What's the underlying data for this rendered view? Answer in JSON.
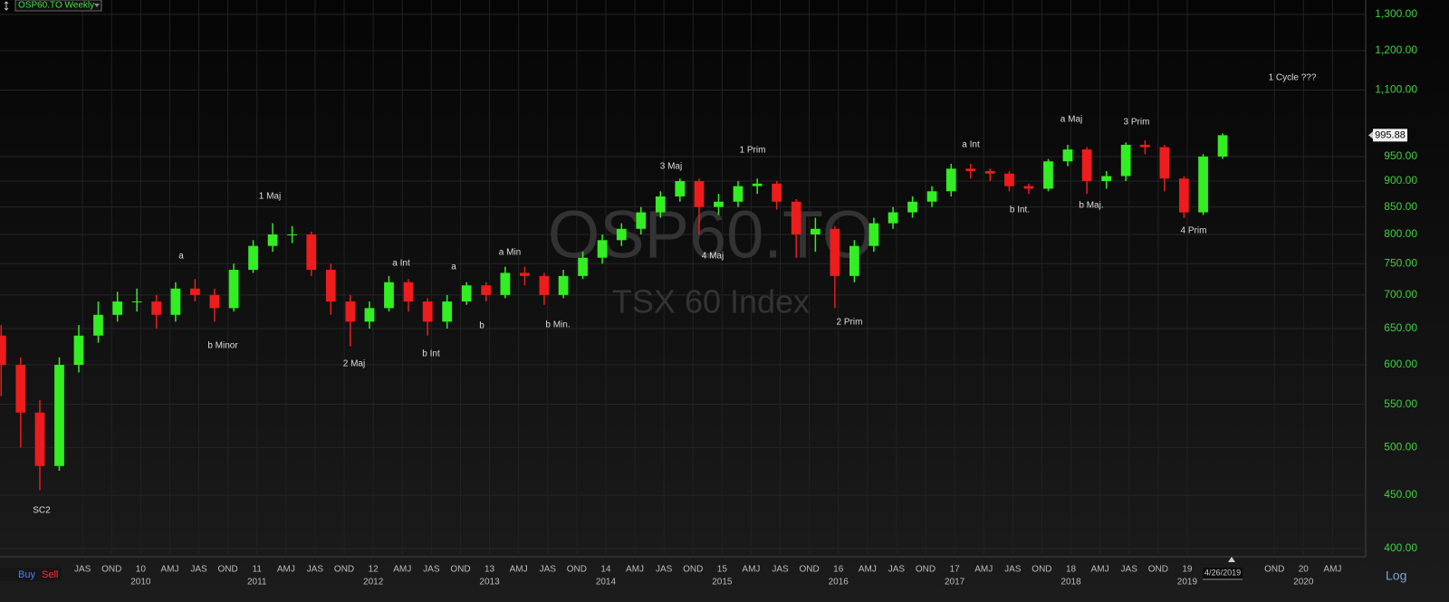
{
  "chart_data": {
    "type": "candlestick",
    "title": "OSP60.TO Weekly",
    "watermark": "OSP60.TO",
    "subtitle": "TSX 60 Index",
    "scale_label": "Log",
    "date_label": "4/26/2019",
    "buttons": [
      "Buy",
      "Sell"
    ],
    "log_scale": true,
    "grid": true,
    "up_color": "#33ee22",
    "down_color": "#ee1c1c",
    "xlim": [
      -0.84,
      46.14
    ],
    "ylim": [
      392.9,
      1342
    ],
    "yticks": [
      {
        "value": 400,
        "label": "400.00"
      },
      {
        "value": 450,
        "label": "450.00"
      },
      {
        "value": 500,
        "label": "500.00"
      },
      {
        "value": 550,
        "label": "550.00"
      },
      {
        "value": 600,
        "label": "600.00"
      },
      {
        "value": 650,
        "label": "650.00"
      },
      {
        "value": 700,
        "label": "700.00"
      },
      {
        "value": 750,
        "label": "750.00"
      },
      {
        "value": 800,
        "label": "800.00"
      },
      {
        "value": 850,
        "label": "850.00"
      },
      {
        "value": 900,
        "label": "900.00"
      },
      {
        "value": 950,
        "label": "950.00"
      },
      {
        "value": 1100,
        "label": "1,100.00"
      },
      {
        "value": 1200,
        "label": "1,200.00"
      },
      {
        "value": 1300,
        "label": "1,300.00"
      }
    ],
    "xticks": [
      {
        "value": 2,
        "label": "JAS"
      },
      {
        "value": 3,
        "label": "OND"
      },
      {
        "value": 4,
        "label": "10"
      },
      {
        "value": 5,
        "label": "AMJ"
      },
      {
        "value": 6,
        "label": "JAS"
      },
      {
        "value": 7,
        "label": "OND"
      },
      {
        "value": 8,
        "label": "11"
      },
      {
        "value": 9,
        "label": "AMJ"
      },
      {
        "value": 10,
        "label": "JAS"
      },
      {
        "value": 11,
        "label": "OND"
      },
      {
        "value": 12,
        "label": "12"
      },
      {
        "value": 13,
        "label": "AMJ"
      },
      {
        "value": 14,
        "label": "JAS"
      },
      {
        "value": 15,
        "label": "OND"
      },
      {
        "value": 16,
        "label": "13"
      },
      {
        "value": 17,
        "label": "AMJ"
      },
      {
        "value": 18,
        "label": "JAS"
      },
      {
        "value": 19,
        "label": "OND"
      },
      {
        "value": 20,
        "label": "14"
      },
      {
        "value": 21,
        "label": "AMJ"
      },
      {
        "value": 22,
        "label": "JAS"
      },
      {
        "value": 23,
        "label": "OND"
      },
      {
        "value": 24,
        "label": "15"
      },
      {
        "value": 25,
        "label": "AMJ"
      },
      {
        "value": 26,
        "label": "JAS"
      },
      {
        "value": 27,
        "label": "OND"
      },
      {
        "value": 28,
        "label": "16"
      },
      {
        "value": 29,
        "label": "AMJ"
      },
      {
        "value": 30,
        "label": "JAS"
      },
      {
        "value": 31,
        "label": "OND"
      },
      {
        "value": 32,
        "label": "17"
      },
      {
        "value": 33,
        "label": "AMJ"
      },
      {
        "value": 34,
        "label": "JAS"
      },
      {
        "value": 35,
        "label": "OND"
      },
      {
        "value": 36,
        "label": "18"
      },
      {
        "value": 37,
        "label": "AMJ"
      },
      {
        "value": 38,
        "label": "JAS"
      },
      {
        "value": 39,
        "label": "OND"
      },
      {
        "value": 40,
        "label": "19"
      },
      {
        "value": 43,
        "label": "OND"
      },
      {
        "value": 44,
        "label": "20"
      },
      {
        "value": 45,
        "label": "AMJ"
      }
    ],
    "xticks_years": [
      {
        "value": 4,
        "label": "2010"
      },
      {
        "value": 8,
        "label": "2011"
      },
      {
        "value": 12,
        "label": "2012"
      },
      {
        "value": 16,
        "label": "2013"
      },
      {
        "value": 20,
        "label": "2014"
      },
      {
        "value": 24,
        "label": "2015"
      },
      {
        "value": 28,
        "label": "2016"
      },
      {
        "value": 32,
        "label": "2017"
      },
      {
        "value": 36,
        "label": "2018"
      },
      {
        "value": 40,
        "label": "2019"
      },
      {
        "value": 44,
        "label": "2020"
      }
    ],
    "annotations": [
      "SC2",
      "a",
      "b Minor",
      "1 Maj",
      "2 Maj",
      "a Int",
      "b Int",
      "a",
      "a Min",
      "b",
      "b Min.",
      "3 Maj",
      "4 Maj",
      "1 Prim",
      "2 Prim",
      "a Int",
      "b Int.",
      "a Maj",
      "b Maj.",
      "3 Prim",
      "4 Prim",
      "1 Cycle ???"
    ],
    "x": [
      -0.8,
      -0.13,
      0.53,
      1.2,
      1.87,
      2.54,
      3.2,
      3.87,
      4.54,
      5.2,
      5.87,
      6.54,
      7.2,
      7.87,
      8.54,
      9.21,
      9.87,
      10.54,
      11.21,
      11.87,
      12.54,
      13.21,
      13.87,
      14.54,
      15.21,
      15.88,
      16.54,
      17.21,
      17.88,
      18.54,
      19.21,
      19.88,
      20.54,
      21.21,
      21.88,
      22.55,
      23.21,
      23.88,
      24.55,
      25.21,
      25.88,
      26.55,
      27.21,
      27.88,
      28.55,
      29.22,
      29.88,
      30.55,
      31.22,
      31.88,
      32.55,
      33.22,
      33.88,
      34.55,
      35.22,
      35.89,
      36.55,
      37.22,
      37.89,
      38.55,
      39.22,
      39.89,
      40.55,
      41.22
    ],
    "open": [
      640,
      600,
      540,
      480,
      600,
      640,
      670,
      690,
      690,
      670,
      710,
      700,
      680,
      740,
      780,
      800,
      800,
      740,
      690,
      660,
      680,
      720,
      690,
      660,
      690,
      715,
      700,
      735,
      730,
      700,
      730,
      760,
      790,
      810,
      840,
      870,
      900,
      850,
      860,
      890,
      895,
      860,
      800,
      810,
      730,
      780,
      820,
      840,
      860,
      880,
      925,
      920,
      915,
      890,
      885,
      940,
      965,
      900,
      910,
      975,
      970,
      905,
      840,
      950
    ],
    "high": [
      655,
      610,
      555,
      610,
      655,
      690,
      705,
      710,
      700,
      720,
      725,
      710,
      750,
      790,
      820,
      815,
      805,
      750,
      700,
      690,
      730,
      725,
      695,
      700,
      720,
      720,
      745,
      745,
      735,
      740,
      770,
      800,
      820,
      850,
      880,
      905,
      905,
      875,
      900,
      905,
      900,
      865,
      830,
      815,
      790,
      830,
      850,
      870,
      890,
      935,
      935,
      925,
      920,
      895,
      945,
      975,
      970,
      920,
      980,
      985,
      975,
      910,
      955,
      1000
    ],
    "low": [
      560,
      500,
      455,
      475,
      590,
      630,
      660,
      675,
      650,
      660,
      690,
      660,
      675,
      735,
      770,
      785,
      730,
      670,
      625,
      650,
      675,
      675,
      640,
      650,
      685,
      690,
      695,
      715,
      685,
      695,
      725,
      750,
      780,
      800,
      830,
      860,
      800,
      835,
      850,
      875,
      845,
      760,
      770,
      680,
      720,
      770,
      810,
      830,
      850,
      870,
      905,
      900,
      880,
      875,
      880,
      930,
      875,
      885,
      900,
      955,
      880,
      830,
      835,
      945
    ],
    "close": [
      600,
      540,
      480,
      600,
      640,
      670,
      690,
      690,
      670,
      710,
      700,
      680,
      740,
      780,
      800,
      800,
      740,
      690,
      660,
      680,
      720,
      690,
      660,
      690,
      715,
      700,
      735,
      730,
      700,
      730,
      760,
      790,
      810,
      840,
      870,
      900,
      850,
      860,
      890,
      895,
      860,
      800,
      810,
      730,
      780,
      820,
      840,
      860,
      880,
      925,
      920,
      915,
      890,
      885,
      940,
      965,
      900,
      910,
      975,
      970,
      905,
      840,
      950,
      995.88
    ]
  }
}
